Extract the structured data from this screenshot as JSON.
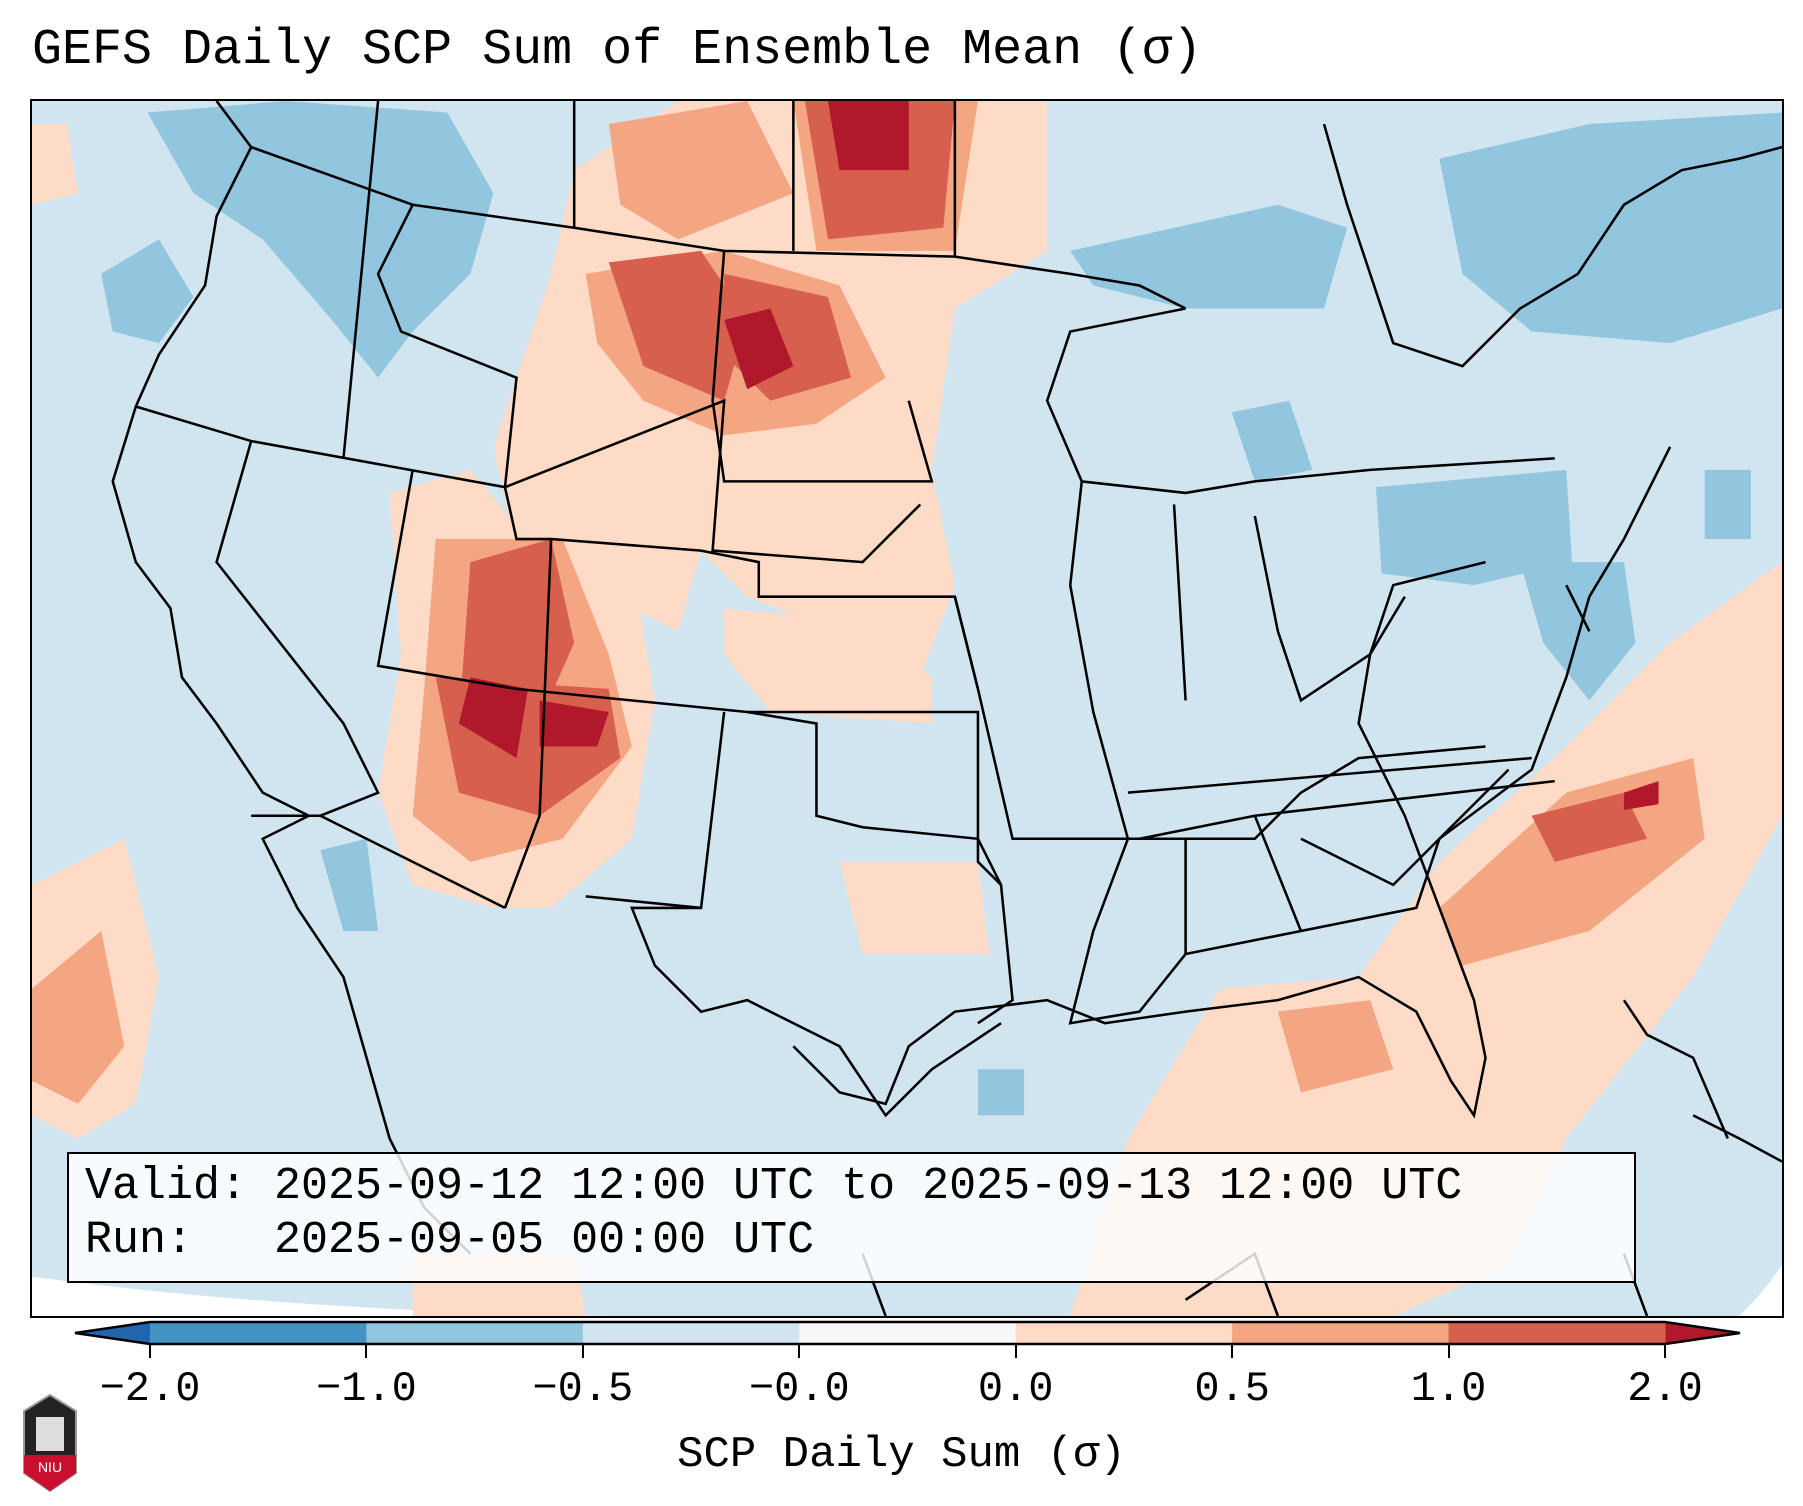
{
  "title": "GEFS Daily SCP Sum of Ensemble Mean (σ)",
  "info_box": {
    "valid_line": "Valid: 2025-09-12 12:00 UTC to 2025-09-13 12:00 UTC",
    "run_line": "Run:   2025-09-05 00:00 UTC"
  },
  "logo_text": "NIU",
  "chart_data": {
    "type": "heatmap",
    "title": "GEFS Daily SCP Sum of Ensemble Mean (σ)",
    "colorbar": {
      "label": "SCP Daily Sum (σ)",
      "tick_labels": [
        "−2.0",
        "−1.0",
        "−0.5",
        "−0.0",
        "0.0",
        "0.5",
        "1.0",
        "2.0"
      ],
      "bounds": [
        -2.0,
        -1.0,
        -0.5,
        -0.0,
        0.0,
        0.5,
        1.0,
        2.0
      ],
      "colors": [
        "#4393c3",
        "#92c5de",
        "#d1e5f0",
        "#f7f7f7",
        "#fddbc7",
        "#f4a582",
        "#d6604d"
      ],
      "extend_low_color": "#2166ac",
      "extend_high_color": "#b2182b",
      "extend": "both",
      "orientation": "horizontal",
      "placement": "bottom"
    },
    "region": "Contiguous United States",
    "features": "state and country borders, coastlines"
  }
}
